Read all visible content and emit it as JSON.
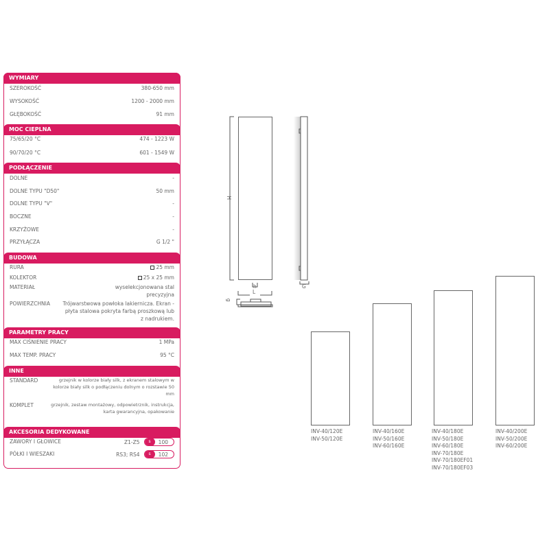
{
  "sections": [
    {
      "title": "WYMIARY",
      "rows": [
        [
          "SZEROKOŚĆ",
          "380-650 mm"
        ],
        [
          "WYSOKOŚĆ",
          "1200 - 2000 mm"
        ],
        [
          "GŁĘBOKOŚĆ",
          "91 mm"
        ]
      ]
    },
    {
      "title": "MOC CIEPLNA",
      "rows": [
        [
          "75/65/20 °C",
          "474 - 1223 W"
        ],
        [
          "90/70/20 °C",
          "601 - 1549 W"
        ]
      ]
    },
    {
      "title": "PODŁĄCZENIE",
      "rows": [
        [
          "DOLNE",
          "-"
        ],
        [
          "DOLNE TYPU \"D50\"",
          "50 mm"
        ],
        [
          "DOLNE TYPU \"V\"",
          "-"
        ],
        [
          "BOCZNE",
          "-"
        ],
        [
          "KRZYŻOWE",
          "-"
        ],
        [
          "PRZYŁĄCZA",
          "G 1/2 \""
        ]
      ]
    },
    {
      "title": "BUDOWA",
      "rows": [
        [
          "RURA",
          "25 mm"
        ],
        [
          "KOLEKTOR",
          "25 x 25 mm"
        ],
        [
          "MATERIAŁ",
          "wyselekcjonowana stal precyzyjna"
        ],
        [
          "POWIERZCHNIA",
          "Trójwarstwowa powłoka lakiernicza. Ekran - płyta stalowa pokryta farbą proszkową lub z nadrukiem."
        ]
      ]
    },
    {
      "title": "PARAMETRY PRACY",
      "rows": [
        [
          "MAX CIŚNIENIE PRACY",
          "1 MPa"
        ],
        [
          "MAX TEMP. PRACY",
          "95 °C"
        ]
      ]
    },
    {
      "title": "INNE",
      "rows": [
        [
          "STANDARD",
          "grzejnik w kolorze biały silk, z ekranem stalowym w kolorze biały silk o podłączeniu dolnym o rozstawie 50 mm"
        ],
        [
          "KOMPLET",
          "grzejnik, zestaw montażowy, odpowietrznik, instrukcja, karta gwarancyjna, opakowanie"
        ]
      ]
    },
    {
      "title": "AKCESORIA DEDYKOWANE",
      "rows": [
        [
          "ZAWORY I GŁOWICE",
          "Z1-Z5",
          "s",
          "100"
        ],
        [
          "PÓŁKI I WIESZAKI",
          "RS3; RS4",
          "s",
          "102"
        ]
      ]
    }
  ],
  "diagram": {
    "H": "H",
    "h": "h",
    "L": "L",
    "G": "G",
    "g": "g"
  },
  "models": [
    [
      "INV-40/120E",
      "INV-50/120E"
    ],
    [
      "INV-40/160E",
      "INV-50/160E",
      "INV-60/160E"
    ],
    [
      "INV-40/180E",
      "INV-50/180E",
      "INV-60/180E",
      "INV-70/180E",
      "INV-70/180EF01",
      "INV-70/180EF03"
    ],
    [
      "INV-40/200E",
      "INV-50/200E",
      "INV-60/200E"
    ]
  ],
  "colors": {
    "accent": "#d81b60"
  }
}
